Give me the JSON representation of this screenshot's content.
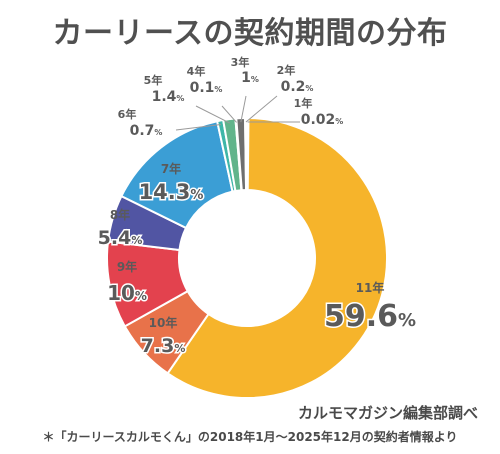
{
  "title": "カーリースの契約期間の分布",
  "source": "カルモマガジン編集部調べ",
  "footnote": "＊「カーリースカルモくん」の2018年1月〜2025年12月の契約者情報より",
  "chart_data": {
    "type": "pie",
    "donut": true,
    "title": "カーリースの契約期間の分布",
    "unit": "%",
    "categories": [
      "11年",
      "10年",
      "9年",
      "8年",
      "7年",
      "6年",
      "5年",
      "4年",
      "3年",
      "2年",
      "1年"
    ],
    "values": [
      59.6,
      7.3,
      10.0,
      5.4,
      14.3,
      0.7,
      1.4,
      0.1,
      1.0,
      0.2,
      0.02
    ],
    "colors": [
      "#F6B42B",
      "#E8724A",
      "#E3424E",
      "#5155A3",
      "#3B9ED5",
      "#3FB6A8",
      "#61B48B",
      "#8A9BB0",
      "#6F6F6F",
      "#2B2B2B",
      "#1A1A1A"
    ]
  }
}
